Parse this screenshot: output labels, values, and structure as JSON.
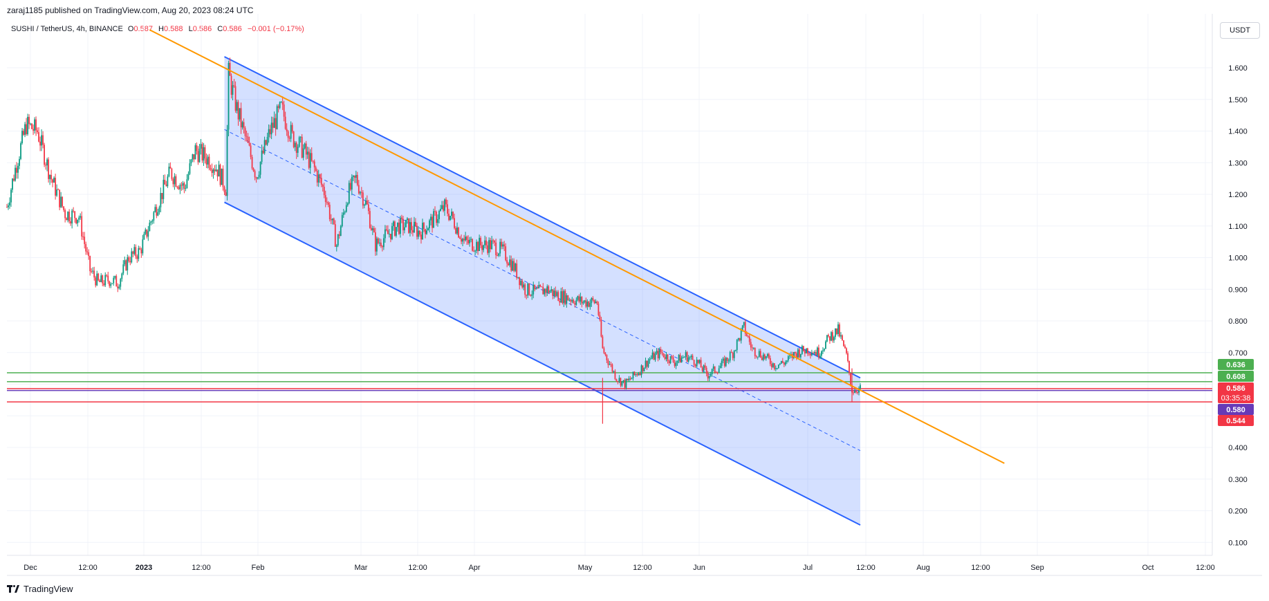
{
  "header": {
    "published": "zaraj1185 published on TradingView.com, Aug 20, 2023 08:24 UTC",
    "symbol": "SUSHI / TetherUS, 4h, BINANCE",
    "open_label": "O",
    "open": "0.587",
    "high_label": "H",
    "high": "0.588",
    "low_label": "L",
    "low": "0.586",
    "close_label": "C",
    "close": "0.586",
    "change": "−0.001 (−0.17%)",
    "currency": "USDT"
  },
  "footer": {
    "brand": "TradingView"
  },
  "colors": {
    "up": "#089981",
    "down": "#f23645",
    "channel": "#2962ff",
    "channel_fill": "rgba(41,98,255,0.20)",
    "trendline": "#ff9800",
    "level_green": "#4caf50",
    "level_red": "#f23645",
    "level_purple": "#673ab7"
  },
  "chart_data": {
    "type": "candlestick",
    "title": "SUSHI / TetherUS, 4h, BINANCE",
    "ylim": [
      0.04,
      1.72
    ],
    "grid": true,
    "x_ticks": [
      {
        "label": "Dec",
        "bold": false
      },
      {
        "label": "12:00",
        "bold": false
      },
      {
        "label": "2023",
        "bold": true
      },
      {
        "label": "12:00",
        "bold": false
      },
      {
        "label": "Feb",
        "bold": false
      },
      {
        "label": "Mar",
        "bold": false
      },
      {
        "label": "12:00",
        "bold": false
      },
      {
        "label": "Apr",
        "bold": false
      },
      {
        "label": "May",
        "bold": false
      },
      {
        "label": "12:00",
        "bold": false
      },
      {
        "label": "Jun",
        "bold": false
      },
      {
        "label": "Jul",
        "bold": false
      },
      {
        "label": "12:00",
        "bold": false
      },
      {
        "label": "Aug",
        "bold": false
      },
      {
        "label": "12:00",
        "bold": false
      },
      {
        "label": "Sep",
        "bold": false
      },
      {
        "label": "Oct",
        "bold": false
      },
      {
        "label": "12:00",
        "bold": false
      }
    ],
    "y_ticks": [
      "1.600",
      "1.500",
      "1.400",
      "1.300",
      "1.200",
      "1.100",
      "1.000",
      "0.900",
      "0.800",
      "0.700",
      "0.400",
      "0.300",
      "0.200",
      "0.100"
    ],
    "price_path": [
      [
        0,
        1.16
      ],
      [
        6,
        1.28
      ],
      [
        14,
        1.42
      ],
      [
        22,
        1.4
      ],
      [
        32,
        1.25
      ],
      [
        42,
        1.14
      ],
      [
        52,
        1.13
      ],
      [
        60,
        0.96
      ],
      [
        66,
        0.92
      ],
      [
        74,
        0.93
      ],
      [
        80,
        0.92
      ],
      [
        88,
        1.0
      ],
      [
        96,
        1.02
      ],
      [
        106,
        1.14
      ],
      [
        118,
        1.27
      ],
      [
        128,
        1.22
      ],
      [
        136,
        1.34
      ],
      [
        146,
        1.31
      ],
      [
        152,
        1.28
      ],
      [
        158,
        1.22
      ],
      [
        160,
        1.58
      ],
      [
        166,
        1.47
      ],
      [
        172,
        1.38
      ],
      [
        180,
        1.26
      ],
      [
        190,
        1.4
      ],
      [
        198,
        1.47
      ],
      [
        206,
        1.38
      ],
      [
        214,
        1.34
      ],
      [
        222,
        1.28
      ],
      [
        230,
        1.2
      ],
      [
        238,
        1.04
      ],
      [
        246,
        1.2
      ],
      [
        252,
        1.25
      ],
      [
        260,
        1.16
      ],
      [
        266,
        1.04
      ],
      [
        274,
        1.07
      ],
      [
        282,
        1.1
      ],
      [
        290,
        1.1
      ],
      [
        298,
        1.08
      ],
      [
        308,
        1.12
      ],
      [
        316,
        1.16
      ],
      [
        322,
        1.12
      ],
      [
        330,
        1.05
      ],
      [
        340,
        1.04
      ],
      [
        350,
        1.04
      ],
      [
        358,
        1.02
      ],
      [
        366,
        0.97
      ],
      [
        374,
        0.9
      ],
      [
        382,
        0.89
      ],
      [
        390,
        0.9
      ],
      [
        398,
        0.88
      ],
      [
        408,
        0.87
      ],
      [
        416,
        0.86
      ],
      [
        426,
        0.86
      ],
      [
        430,
        0.71
      ],
      [
        440,
        0.62
      ],
      [
        446,
        0.6
      ],
      [
        456,
        0.64
      ],
      [
        464,
        0.68
      ],
      [
        472,
        0.7
      ],
      [
        482,
        0.67
      ],
      [
        490,
        0.69
      ],
      [
        498,
        0.67
      ],
      [
        506,
        0.63
      ],
      [
        516,
        0.66
      ],
      [
        524,
        0.7
      ],
      [
        532,
        0.78
      ],
      [
        538,
        0.71
      ],
      [
        546,
        0.69
      ],
      [
        554,
        0.66
      ],
      [
        562,
        0.67
      ],
      [
        570,
        0.7
      ],
      [
        578,
        0.71
      ],
      [
        586,
        0.7
      ],
      [
        594,
        0.75
      ],
      [
        600,
        0.77
      ],
      [
        606,
        0.69
      ],
      [
        610,
        0.58
      ],
      [
        616,
        0.586
      ]
    ],
    "channel": {
      "upper": [
        [
          157,
          1.635
        ],
        [
          616,
          0.62
        ]
      ],
      "lower": [
        [
          157,
          1.175
        ],
        [
          616,
          0.155
        ]
      ],
      "midline": [
        [
          157,
          1.405
        ],
        [
          616,
          0.39
        ]
      ]
    },
    "trendline": [
      [
        103,
        1.72
      ],
      [
        720,
        0.35
      ]
    ],
    "horizontal_levels": [
      {
        "price": 0.636,
        "label": "0.636",
        "color": "#4caf50"
      },
      {
        "price": 0.608,
        "label": "0.608",
        "color": "#4caf50"
      },
      {
        "price": 0.586,
        "label": "0.586",
        "color": "#f23645",
        "countdown": "03:35:38"
      },
      {
        "price": 0.58,
        "label": "0.580",
        "color": "#673ab7"
      },
      {
        "price": 0.544,
        "label": "0.544",
        "color": "#f23645"
      }
    ],
    "last_price": 0.586
  }
}
